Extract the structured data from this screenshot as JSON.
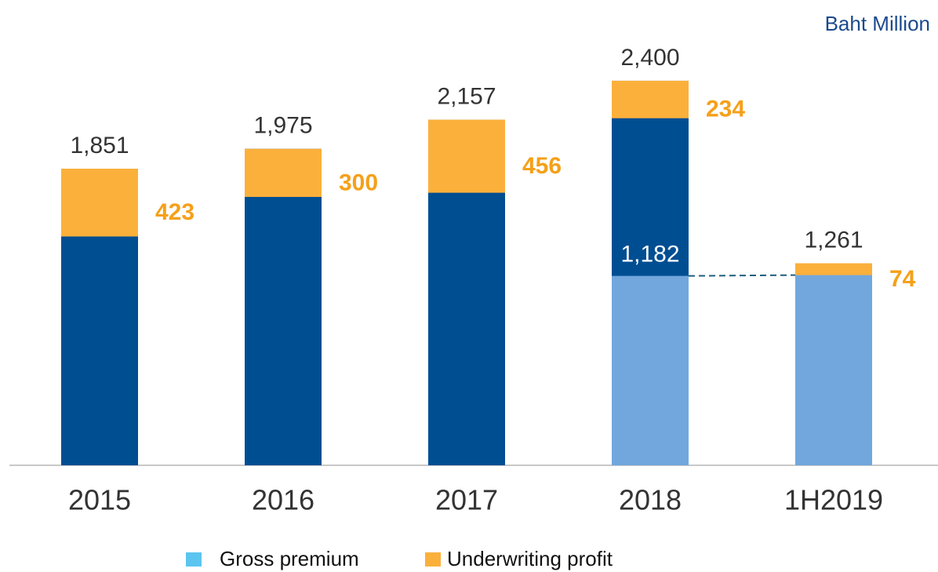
{
  "chart_data": {
    "type": "bar",
    "unit_label": "Baht Million",
    "categories": [
      "2015",
      "2016",
      "2017",
      "2018",
      "1H2019"
    ],
    "series": [
      {
        "name": "Gross premium",
        "color": "#5bc5f0",
        "bar_colors": [
          "#004e92",
          "#004e92",
          "#004e92",
          "#004e92",
          "#72a7dd"
        ],
        "values": [
          1851,
          1975,
          2157,
          2400,
          1261
        ],
        "value_labels": [
          "1,851",
          "1,975",
          "2,157",
          "2,400",
          "1,261"
        ]
      },
      {
        "name": "Underwriting profit",
        "color": "#fbb03b",
        "values": [
          423,
          300,
          456,
          234,
          74
        ]
      }
    ],
    "comparison": {
      "category": "2018",
      "value": 1182,
      "label": "1,182",
      "color": "#72a7dd",
      "line_color": "#1f5f7f"
    }
  }
}
